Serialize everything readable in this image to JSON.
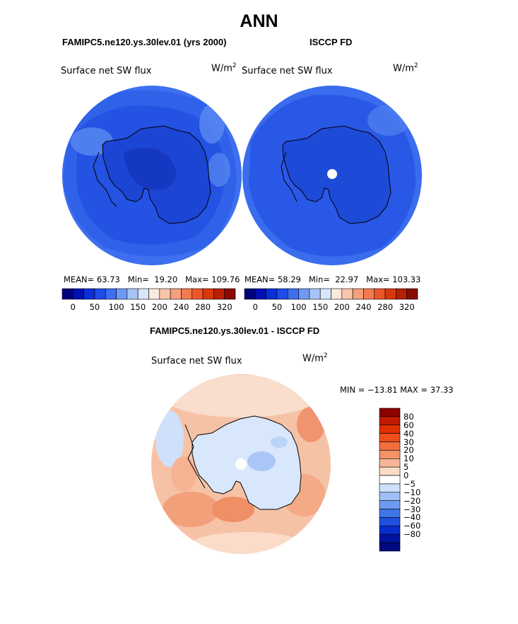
{
  "title": "ANN",
  "left_panel": {
    "title": "FAMIPC5.ne120.ys.30lev.01 (yrs 2000)",
    "variable": "Surface net SW flux",
    "units_base": "W/m",
    "units_exp": "2",
    "stats": {
      "mean_label": "MEAN=",
      "mean": "63.73",
      "min_label": "Min=",
      "min": "19.20",
      "max_label": "Max=",
      "max": "109.76"
    }
  },
  "right_panel": {
    "title": "ISCCP FD",
    "variable": "Surface net SW flux",
    "units_base": "W/m",
    "units_exp": "2",
    "stats": {
      "mean_label": "MEAN=",
      "mean": "58.29",
      "min_label": "Min=",
      "min": "22.97",
      "max_label": "Max=",
      "max": "103.33"
    }
  },
  "abs_colorbar": {
    "labels": [
      "0",
      "50",
      "100",
      "150",
      "200",
      "240",
      "280",
      "320"
    ],
    "colors": [
      "#00007a",
      "#0010b0",
      "#0a2ed8",
      "#1f4be8",
      "#3d6ff0",
      "#6f99f5",
      "#a6c4f8",
      "#d6e6fb",
      "#fbe9dc",
      "#f8c6a8",
      "#f5a07c",
      "#f27a52",
      "#ee552b",
      "#d9380f",
      "#b81f04",
      "#8a0a00"
    ]
  },
  "diff_panel": {
    "title": "FAMIPC5.ne120.ys.30lev.01 - ISCCP FD",
    "variable": "Surface net SW flux",
    "units_base": "W/m",
    "units_exp": "2",
    "minmax": "MIN = −13.81 MAX =  37.33"
  },
  "diff_colorbar": {
    "labels": [
      "80",
      "60",
      "40",
      "30",
      "20",
      "10",
      "5",
      "0",
      "−5",
      "−10",
      "−20",
      "−30",
      "−40",
      "−60",
      "−80"
    ],
    "colors": [
      "#8f0000",
      "#c01b00",
      "#e03000",
      "#ef4f1a",
      "#f26e3c",
      "#f49268",
      "#f7b697",
      "#fadcc8",
      "#ffffff",
      "#cfe0fb",
      "#9fbff5",
      "#6d9bf0",
      "#3f75e8",
      "#1e4fde",
      "#0a2ccc",
      "#0014a0",
      "#000880"
    ]
  },
  "maps": {
    "model_fill": "#1a47d8",
    "model_ocean": "#3f6fe8",
    "obs_fill": "#1f4fe2",
    "obs_ocean": "#3768ea",
    "diff_ocean": "#f5b394",
    "diff_land": "#cddffb",
    "coastline_color": "#000000"
  }
}
